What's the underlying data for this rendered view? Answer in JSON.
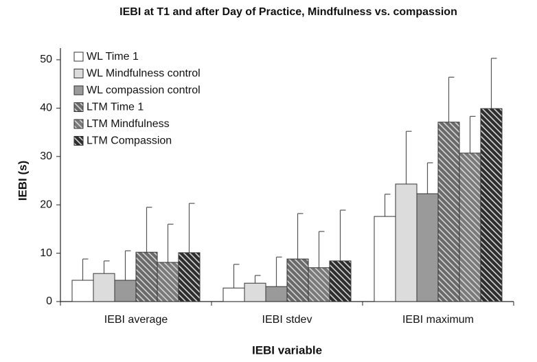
{
  "chart_data": {
    "type": "bar",
    "title": "IEBI at T1 and after Day of Practice, Mindfulness vs. compassion",
    "x_label": "IEBI variable",
    "y_label": "IEBI (s)",
    "categories": [
      "IEBI average",
      "IEBI stdev",
      "IEBI maximum"
    ],
    "ylim": [
      0,
      50
    ],
    "yticks": [
      0,
      10,
      20,
      30,
      40,
      50
    ],
    "legend": "top-left",
    "series": [
      {
        "name": "WL Time 1",
        "color": "#ffffff",
        "hatch": false,
        "values": [
          4.4,
          2.8,
          17.6
        ],
        "errors": [
          4.4,
          4.9,
          4.6
        ]
      },
      {
        "name": "WL Mindfulness control",
        "color": "#dcdcdc",
        "hatch": false,
        "values": [
          5.8,
          3.8,
          24.3
        ],
        "errors": [
          2.6,
          1.6,
          10.9
        ]
      },
      {
        "name": "WL compassion control",
        "color": "#9a9a9a",
        "hatch": false,
        "values": [
          4.4,
          3.1,
          22.3
        ],
        "errors": [
          6.1,
          6.1,
          6.4
        ]
      },
      {
        "name": "LTM Time 1",
        "color": "#6a6a6a",
        "hatch": true,
        "values": [
          10.2,
          8.8,
          37.1
        ],
        "errors": [
          9.3,
          9.4,
          9.3
        ]
      },
      {
        "name": "LTM Mindfulness",
        "color": "#7a7a7a",
        "hatch": true,
        "values": [
          8.1,
          7.0,
          30.7
        ],
        "errors": [
          7.9,
          7.5,
          7.6
        ]
      },
      {
        "name": "LTM Compassion",
        "color": "#2e2e2e",
        "hatch": true,
        "values": [
          10.1,
          8.4,
          39.9
        ],
        "errors": [
          10.2,
          10.5,
          10.4
        ]
      }
    ]
  }
}
